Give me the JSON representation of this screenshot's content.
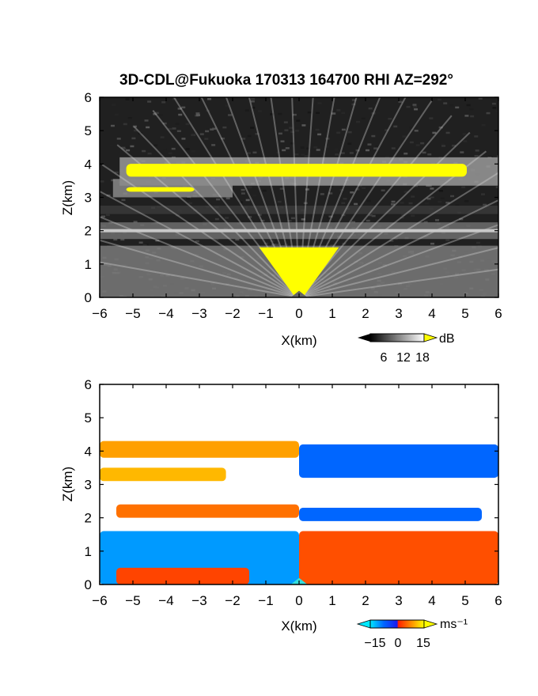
{
  "title": "3D-CDL@Fukuoka 170313 164700 RHI AZ=292°",
  "chart_data": [
    {
      "type": "heatmap",
      "quantity": "backscatter intensity",
      "xlabel": "X(km)",
      "ylabel": "Z(km)",
      "xlim": [
        -6,
        6
      ],
      "ylim": [
        0,
        6
      ],
      "x_ticks": [
        "−6",
        "−5",
        "−4",
        "−3",
        "−2",
        "−1",
        "0",
        "1",
        "2",
        "3",
        "4",
        "5",
        "6"
      ],
      "y_ticks": [
        "0",
        "1",
        "2",
        "3",
        "4",
        "5",
        "6"
      ],
      "colorbar": {
        "unit": "dB",
        "ticks": [
          "6",
          "12",
          "18"
        ],
        "range": [
          0,
          20
        ],
        "saturation_color": "#ffff00"
      },
      "features": [
        {
          "name": "upper layer",
          "x_range": [
            -5.2,
            6
          ],
          "z_range": [
            3.4,
            4.1
          ],
          "peak": "yellow (≥18 dB)",
          "z_center": 3.75
        },
        {
          "name": "secondary layer",
          "x_range": [
            -5.2,
            -2.2
          ],
          "z_range": [
            3.15,
            3.4
          ],
          "peak": "yellow (≥18 dB)",
          "z_center": 3.3
        },
        {
          "name": "mid layer",
          "x_range": [
            -6,
            6
          ],
          "z_range": [
            1.8,
            2.2
          ],
          "peak": "light gray",
          "z_center": 2.0
        },
        {
          "name": "boundary layer cone",
          "x_range": [
            -1.2,
            1.2
          ],
          "z_range": [
            0,
            1.5
          ],
          "peak": "yellow (≥18 dB)",
          "z_center": 0.8
        }
      ]
    },
    {
      "type": "heatmap",
      "quantity": "radial velocity",
      "xlabel": "X(km)",
      "ylabel": "Z(km)",
      "xlim": [
        -6,
        6
      ],
      "ylim": [
        0,
        6
      ],
      "x_ticks": [
        "−6",
        "−5",
        "−4",
        "−3",
        "−2",
        "−1",
        "0",
        "1",
        "2",
        "3",
        "4",
        "5",
        "6"
      ],
      "y_ticks": [
        "0",
        "1",
        "2",
        "3",
        "4",
        "5",
        "6"
      ],
      "colorbar": {
        "unit": "ms⁻¹",
        "ticks": [
          "−15",
          "0",
          "15"
        ],
        "range": [
          -20,
          20
        ]
      },
      "regions": [
        {
          "name": "upper layer west",
          "x_range": [
            -6,
            0
          ],
          "z_range": [
            3.8,
            4.3
          ],
          "velocity": 12
        },
        {
          "name": "upper layer east",
          "x_range": [
            0,
            6
          ],
          "z_range": [
            3.2,
            4.2
          ],
          "velocity": -10
        },
        {
          "name": "secondary layer west",
          "x_range": [
            -6,
            -2.2
          ],
          "z_range": [
            3.1,
            3.5
          ],
          "velocity": 14
        },
        {
          "name": "mid layer west",
          "x_range": [
            -5.5,
            0
          ],
          "z_range": [
            2.0,
            2.4
          ],
          "velocity": 8
        },
        {
          "name": "mid layer east",
          "x_range": [
            0,
            5.5
          ],
          "z_range": [
            1.9,
            2.3
          ],
          "velocity": -10
        },
        {
          "name": "boundary layer west",
          "x_range": [
            -6,
            0
          ],
          "z_range": [
            0,
            1.6
          ],
          "velocity": -14
        },
        {
          "name": "boundary layer east",
          "x_range": [
            0,
            6
          ],
          "z_range": [
            0,
            1.6
          ],
          "velocity": 5
        },
        {
          "name": "near-surface west",
          "x_range": [
            -5.5,
            -1.5
          ],
          "z_range": [
            0,
            0.5
          ],
          "velocity": 4
        }
      ]
    }
  ]
}
